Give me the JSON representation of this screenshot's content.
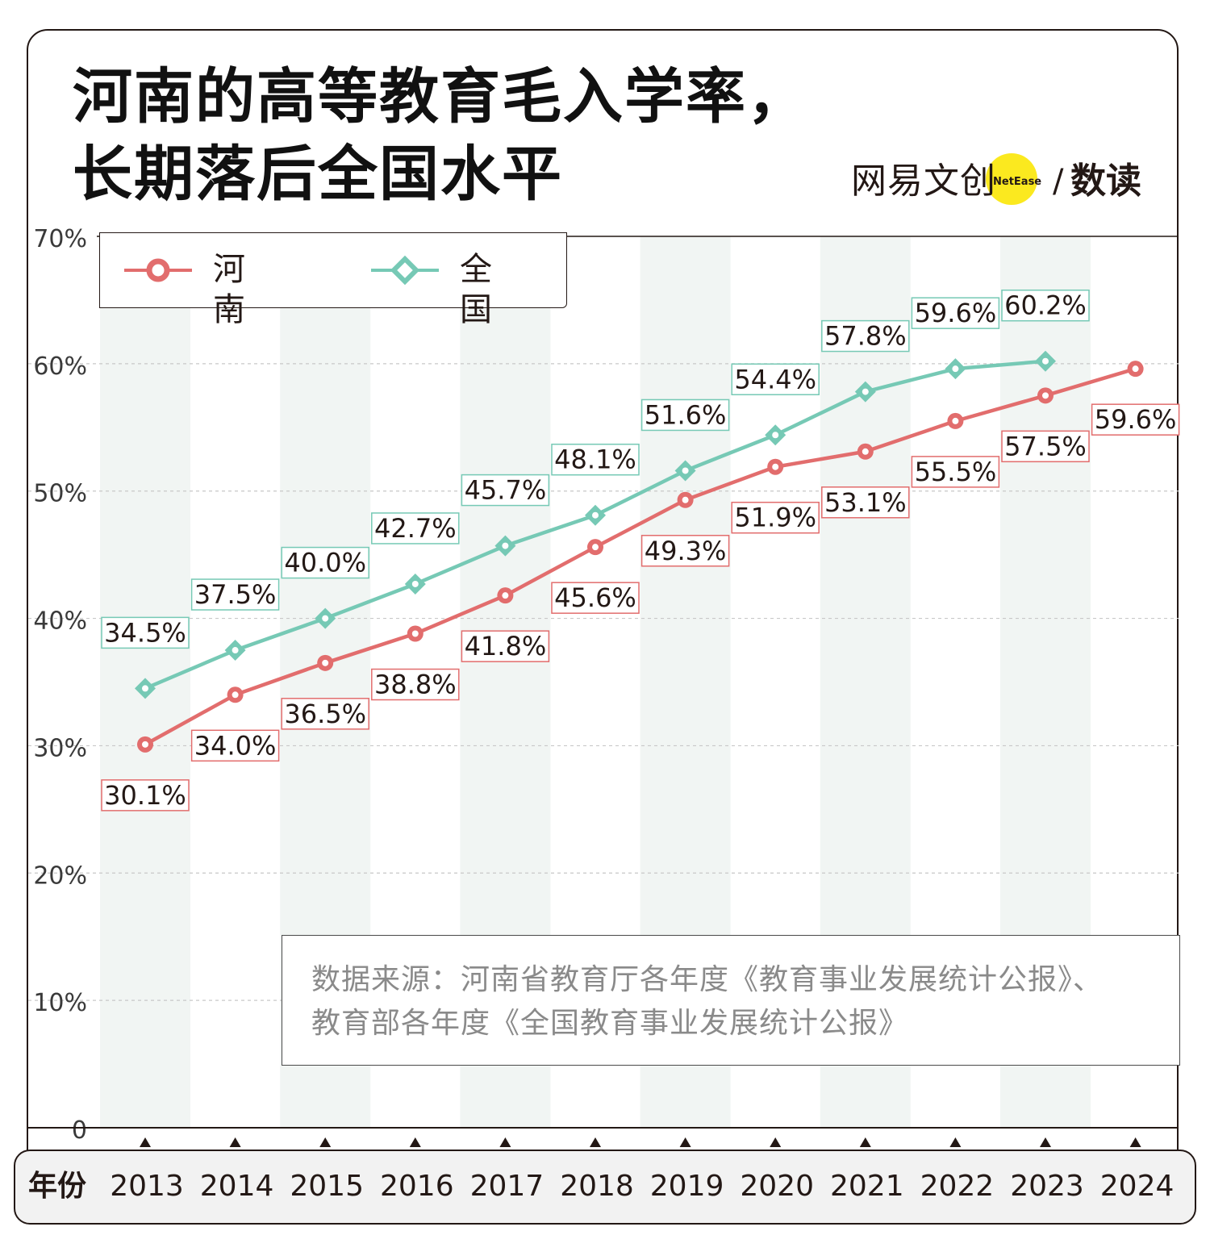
{
  "title": {
    "line1": "河南的高等教育毛入学率，",
    "line2": "长期落后全国水平"
  },
  "brand": {
    "name": "网易文创",
    "netease": "NetEase",
    "slash": "/",
    "sub": "数读",
    "accent": "#fbe91f"
  },
  "source": {
    "line1": "数据来源：河南省教育厅各年度《教育事业发展统计公报》、",
    "line2": "教育部各年度《全国教育事业发展统计公报》"
  },
  "x_axis_label": "年份",
  "chart_data": {
    "type": "line",
    "categories": [
      "2013",
      "2014",
      "2015",
      "2016",
      "2017",
      "2018",
      "2019",
      "2020",
      "2021",
      "2022",
      "2023",
      "2024"
    ],
    "series": [
      {
        "name": "河南",
        "color": "#e26d6d",
        "marker": "circle",
        "values": [
          30.1,
          34.0,
          36.5,
          38.8,
          41.8,
          45.6,
          49.3,
          51.9,
          53.1,
          55.5,
          57.5,
          59.6
        ],
        "labels": [
          "30.1%",
          "34.0%",
          "36.5%",
          "38.8%",
          "41.8%",
          "45.6%",
          "49.3%",
          "51.9%",
          "53.1%",
          "55.5%",
          "57.5%",
          "59.6%"
        ]
      },
      {
        "name": "全国",
        "color": "#76c9b5",
        "marker": "diamond",
        "values": [
          34.5,
          37.5,
          40.0,
          42.7,
          45.7,
          48.1,
          51.6,
          54.4,
          57.8,
          59.6,
          60.2,
          null
        ],
        "labels": [
          "34.5%",
          "37.5%",
          "40.0%",
          "42.7%",
          "45.7%",
          "48.1%",
          "51.6%",
          "54.4%",
          "57.8%",
          "59.6%",
          "60.2%",
          null
        ]
      }
    ],
    "yticks": [
      "0",
      "10%",
      "20%",
      "30%",
      "40%",
      "50%",
      "60%",
      "70%"
    ],
    "ylim": [
      0,
      70
    ],
    "grid": true,
    "legend_position": "top-left"
  }
}
